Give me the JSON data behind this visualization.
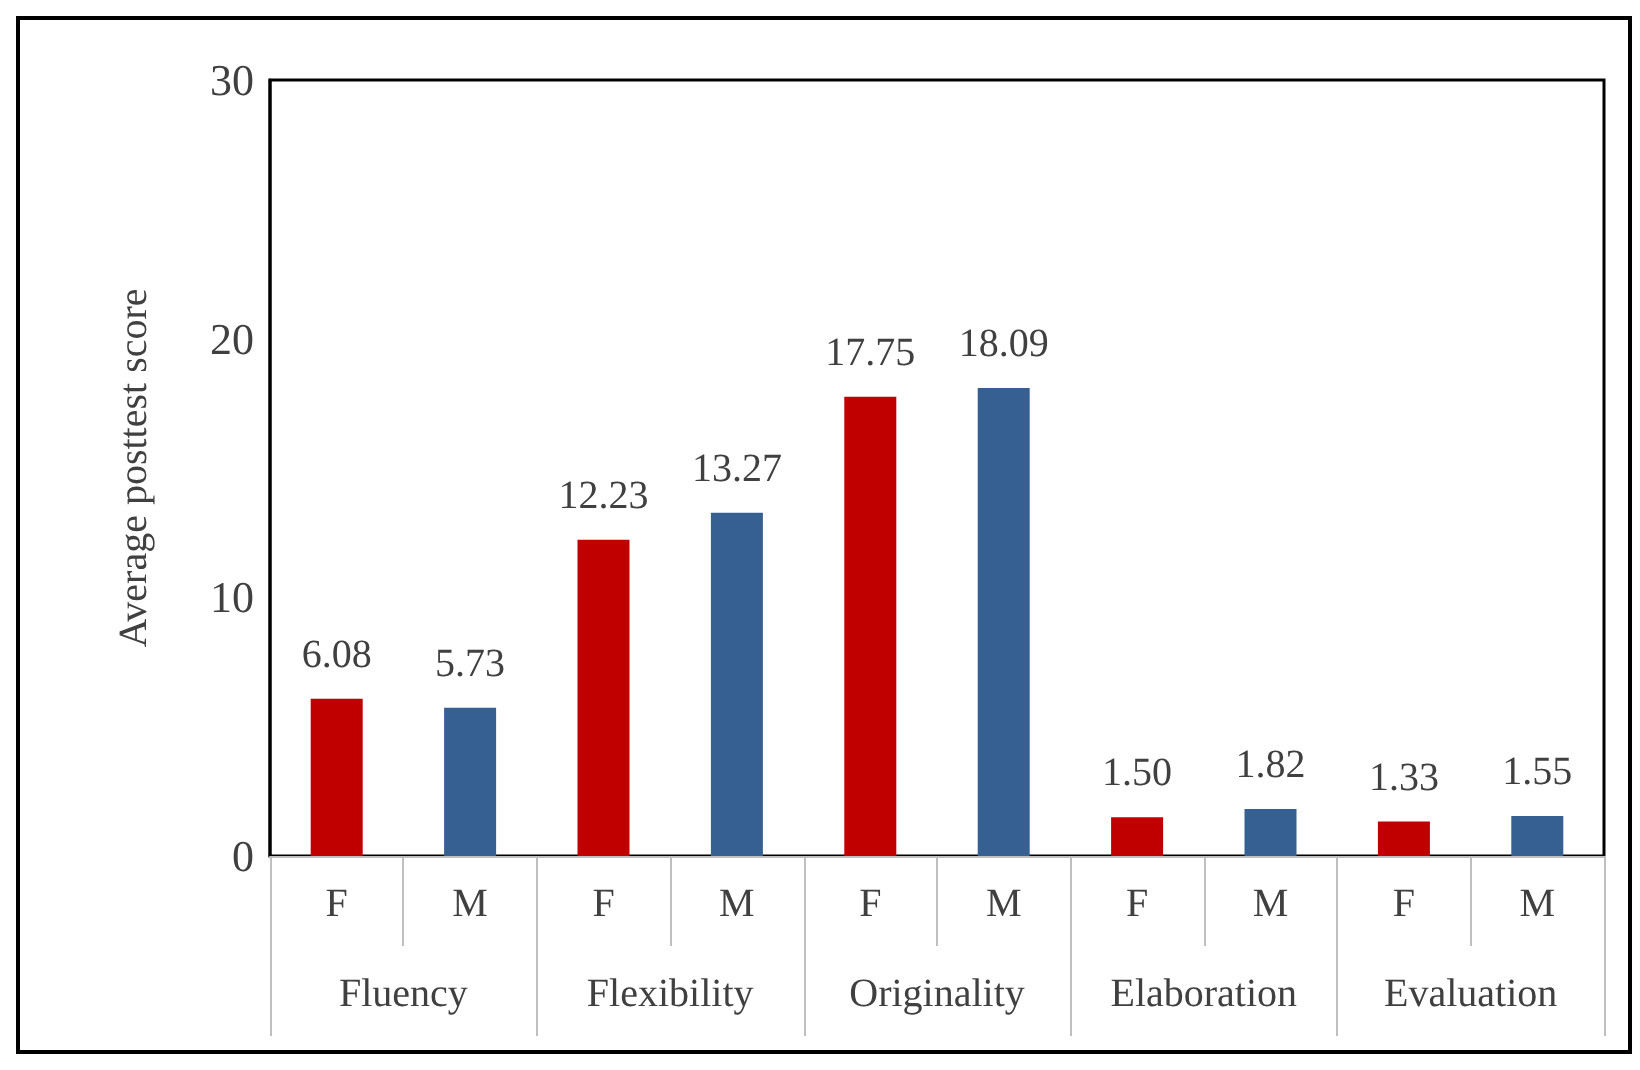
{
  "chart_data": {
    "type": "bar",
    "ylabel": "Average posttest score",
    "categories": [
      "F",
      "M",
      "F",
      "M",
      "F",
      "M",
      "F",
      "M",
      "F",
      "M"
    ],
    "values": [
      6.08,
      5.73,
      12.23,
      13.27,
      17.75,
      18.09,
      1.5,
      1.82,
      1.33,
      1.55
    ],
    "value_labels": [
      "6.08",
      "5.73",
      "12.23",
      "13.27",
      "17.75",
      "18.09",
      "1.50",
      "1.82",
      "1.33",
      "1.55"
    ],
    "colors": [
      "#c00000",
      "#376092",
      "#c00000",
      "#376092",
      "#c00000",
      "#376092",
      "#c00000",
      "#376092",
      "#c00000",
      "#376092"
    ],
    "annotations": [
      "Fluency",
      "Flexibility",
      "Originality",
      "Elaboration",
      "Evaluation"
    ],
    "ylim": [
      0,
      30
    ],
    "yticks": [
      0,
      10,
      20,
      30
    ],
    "grid": false
  }
}
